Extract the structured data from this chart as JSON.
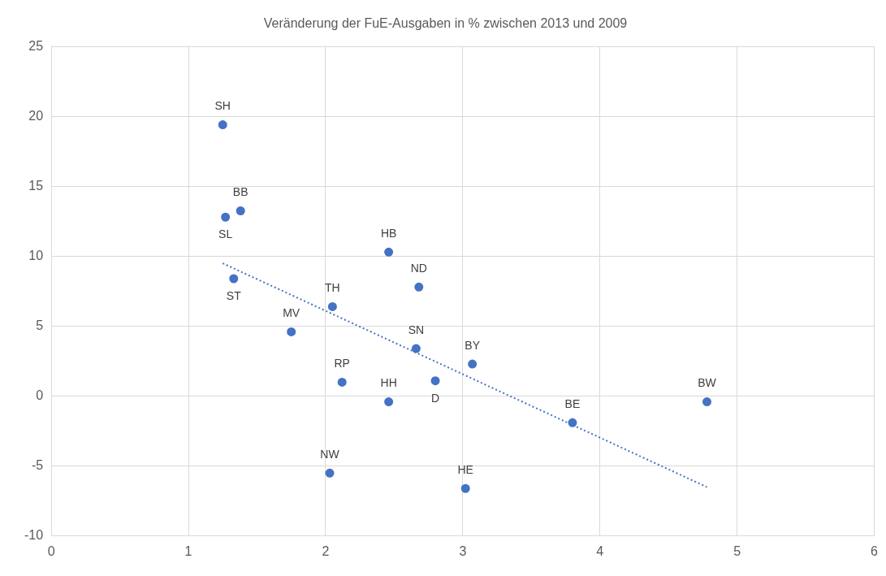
{
  "chart_data": {
    "type": "scatter",
    "title": "Veränderung der FuE-Ausgaben in % zwischen 2013 und 2009",
    "series": [
      {
        "type": "scatter",
        "color": "#4472c4",
        "marker": "circle",
        "x": [
          1.25,
          1.38,
          1.27,
          1.33,
          1.75,
          2.05,
          2.46,
          2.68,
          2.66,
          3.07,
          2.8,
          2.12,
          2.46,
          3.8,
          4.78,
          2.03,
          3.02
        ],
        "values": [
          19.4,
          13.25,
          12.8,
          8.4,
          4.6,
          6.4,
          10.3,
          7.8,
          3.4,
          2.3,
          1.1,
          1.0,
          -0.4,
          -1.9,
          -0.4,
          -5.5,
          -6.6
        ]
      },
      {
        "type": "line",
        "color": "#4472c4",
        "marker": "none",
        "line_style": "dotted",
        "x": [
          1.25,
          4.78
        ],
        "values": [
          9.5,
          -6.5
        ]
      }
    ],
    "annotations": [
      {
        "text": "SH",
        "x": 1.25,
        "y": 19.4
      },
      {
        "text": "BB",
        "x": 1.38,
        "y": 13.25
      },
      {
        "text": "SL",
        "x": 1.27,
        "y": 12.8
      },
      {
        "text": "ST",
        "x": 1.33,
        "y": 8.4
      },
      {
        "text": "MV",
        "x": 1.75,
        "y": 4.6
      },
      {
        "text": "TH",
        "x": 2.05,
        "y": 6.4
      },
      {
        "text": "HB",
        "x": 2.46,
        "y": 10.3
      },
      {
        "text": "ND",
        "x": 2.68,
        "y": 7.8
      },
      {
        "text": "SN",
        "x": 2.66,
        "y": 3.4
      },
      {
        "text": "BY",
        "x": 3.07,
        "y": 2.3
      },
      {
        "text": "D",
        "x": 2.8,
        "y": 1.1
      },
      {
        "text": "RP",
        "x": 2.12,
        "y": 1.0
      },
      {
        "text": "HH",
        "x": 2.46,
        "y": -0.4
      },
      {
        "text": "BE",
        "x": 3.8,
        "y": -1.9
      },
      {
        "text": "BW",
        "x": 4.78,
        "y": -0.4
      },
      {
        "text": "NW",
        "x": 2.03,
        "y": -5.5
      },
      {
        "text": "HE",
        "x": 3.02,
        "y": -6.6
      }
    ],
    "xlim": [
      0,
      6
    ],
    "xticks": [
      0,
      1,
      2,
      3,
      4,
      5,
      6
    ],
    "ylim": [
      -10,
      25
    ],
    "yticks": [
      -10,
      -5,
      0,
      5,
      10,
      15,
      20,
      25
    ],
    "grid": true,
    "legend": false
  }
}
